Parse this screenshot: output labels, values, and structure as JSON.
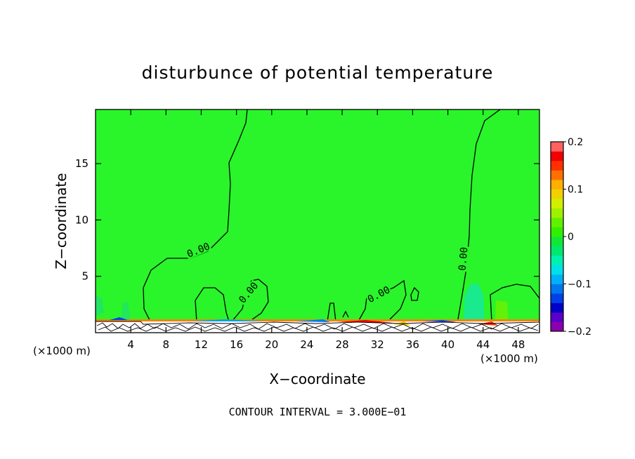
{
  "chart_data": {
    "type": "heatmap",
    "title": "disturbunce of potential temperature",
    "xlabel": "X−coordinate",
    "ylabel": "Z−coordinate",
    "xunit": "(×1000 m)",
    "yunit": "(×1000 m)",
    "xlim": [
      0,
      50.4
    ],
    "ylim": [
      0,
      19.8
    ],
    "xticks": [
      4,
      8,
      12,
      16,
      20,
      24,
      28,
      32,
      36,
      40,
      44,
      48
    ],
    "yticks": [
      5,
      10,
      15
    ],
    "footer": "CONTOUR INTERVAL = 3.000E−01",
    "contour_labels": [
      {
        "text": "0.00",
        "x": 11.5,
        "y": 7.3
      },
      {
        "text": "0.00",
        "x": 17.2,
        "y": 3.5
      },
      {
        "text": "0.00",
        "x": 32.0,
        "y": 3.3
      },
      {
        "text": "0.00",
        "x": 41.5,
        "y": 6.7
      }
    ],
    "colorbar": {
      "min": -0.2,
      "max": 0.2,
      "ticks": [
        {
          "value": 0.2,
          "label": "0.2"
        },
        {
          "value": 0.1,
          "label": "0.1"
        },
        {
          "value": 0,
          "label": "0"
        },
        {
          "value": -0.1,
          "label": "−0.1"
        },
        {
          "value": -0.2,
          "label": "−0.2"
        }
      ],
      "colors": [
        "#8a00b0",
        "#5a00c8",
        "#0000c8",
        "#0040e8",
        "#0078f0",
        "#00b0f8",
        "#00e0e8",
        "#00f0b0",
        "#00e870",
        "#10e838",
        "#30f000",
        "#60f000",
        "#a0f000",
        "#d0f000",
        "#f0d000",
        "#ffb000",
        "#ff7000",
        "#ff3000",
        "#f00000",
        "#ff6060"
      ]
    }
  }
}
